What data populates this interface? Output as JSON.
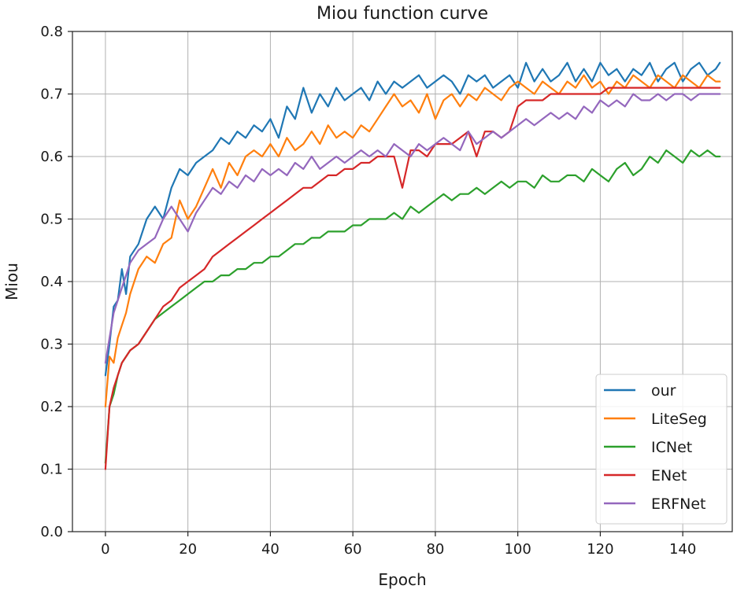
{
  "chart_data": {
    "type": "line",
    "title": "Miou function curve",
    "xlabel": "Epoch",
    "ylabel": "Miou",
    "xlim": [
      -8,
      152
    ],
    "ylim": [
      0.0,
      0.8
    ],
    "xticks": [
      0,
      20,
      40,
      60,
      80,
      100,
      120,
      140
    ],
    "yticks": [
      0.0,
      0.1,
      0.2,
      0.3,
      0.4,
      0.5,
      0.6,
      0.7,
      0.8
    ],
    "xtick_labels": [
      "0",
      "20",
      "40",
      "60",
      "80",
      "100",
      "120",
      "140"
    ],
    "ytick_labels": [
      "0.0",
      "0.1",
      "0.2",
      "0.3",
      "0.4",
      "0.5",
      "0.6",
      "0.7",
      "0.8"
    ],
    "grid": true,
    "legend_position": "bottom-right",
    "x": [
      0,
      1,
      2,
      3,
      4,
      5,
      6,
      8,
      10,
      12,
      14,
      16,
      18,
      20,
      22,
      24,
      26,
      28,
      30,
      32,
      34,
      36,
      38,
      40,
      42,
      44,
      46,
      48,
      50,
      52,
      54,
      56,
      58,
      60,
      62,
      64,
      66,
      68,
      70,
      72,
      74,
      76,
      78,
      80,
      82,
      84,
      86,
      88,
      90,
      92,
      94,
      96,
      98,
      100,
      102,
      104,
      106,
      108,
      110,
      112,
      114,
      116,
      118,
      120,
      122,
      124,
      126,
      128,
      130,
      132,
      134,
      136,
      138,
      140,
      142,
      144,
      146,
      148,
      149
    ],
    "series": [
      {
        "name": "our",
        "color": "#1f77b4",
        "values": [
          0.25,
          0.3,
          0.36,
          0.37,
          0.42,
          0.38,
          0.44,
          0.46,
          0.5,
          0.52,
          0.5,
          0.55,
          0.58,
          0.57,
          0.59,
          0.6,
          0.61,
          0.63,
          0.62,
          0.64,
          0.63,
          0.65,
          0.64,
          0.66,
          0.63,
          0.68,
          0.66,
          0.71,
          0.67,
          0.7,
          0.68,
          0.71,
          0.69,
          0.7,
          0.71,
          0.69,
          0.72,
          0.7,
          0.72,
          0.71,
          0.72,
          0.73,
          0.71,
          0.72,
          0.73,
          0.72,
          0.7,
          0.73,
          0.72,
          0.73,
          0.71,
          0.72,
          0.73,
          0.71,
          0.75,
          0.72,
          0.74,
          0.72,
          0.73,
          0.75,
          0.72,
          0.74,
          0.72,
          0.75,
          0.73,
          0.74,
          0.72,
          0.74,
          0.73,
          0.75,
          0.72,
          0.74,
          0.75,
          0.72,
          0.74,
          0.75,
          0.73,
          0.74,
          0.75
        ]
      },
      {
        "name": "LiteSeg",
        "color": "#ff7f0e",
        "values": [
          0.2,
          0.28,
          0.27,
          0.31,
          0.33,
          0.35,
          0.38,
          0.42,
          0.44,
          0.43,
          0.46,
          0.47,
          0.53,
          0.5,
          0.52,
          0.55,
          0.58,
          0.55,
          0.59,
          0.57,
          0.6,
          0.61,
          0.6,
          0.62,
          0.6,
          0.63,
          0.61,
          0.62,
          0.64,
          0.62,
          0.65,
          0.63,
          0.64,
          0.63,
          0.65,
          0.64,
          0.66,
          0.68,
          0.7,
          0.68,
          0.69,
          0.67,
          0.7,
          0.66,
          0.69,
          0.7,
          0.68,
          0.7,
          0.69,
          0.71,
          0.7,
          0.69,
          0.71,
          0.72,
          0.71,
          0.7,
          0.72,
          0.71,
          0.7,
          0.72,
          0.71,
          0.73,
          0.71,
          0.72,
          0.7,
          0.72,
          0.71,
          0.73,
          0.72,
          0.71,
          0.73,
          0.72,
          0.71,
          0.73,
          0.72,
          0.71,
          0.73,
          0.72,
          0.72
        ]
      },
      {
        "name": "ICNet",
        "color": "#2ca02c",
        "values": [
          0.11,
          0.2,
          0.22,
          0.25,
          0.27,
          0.28,
          0.29,
          0.3,
          0.32,
          0.34,
          0.35,
          0.36,
          0.37,
          0.38,
          0.39,
          0.4,
          0.4,
          0.41,
          0.41,
          0.42,
          0.42,
          0.43,
          0.43,
          0.44,
          0.44,
          0.45,
          0.46,
          0.46,
          0.47,
          0.47,
          0.48,
          0.48,
          0.48,
          0.49,
          0.49,
          0.5,
          0.5,
          0.5,
          0.51,
          0.5,
          0.52,
          0.51,
          0.52,
          0.53,
          0.54,
          0.53,
          0.54,
          0.54,
          0.55,
          0.54,
          0.55,
          0.56,
          0.55,
          0.56,
          0.56,
          0.55,
          0.57,
          0.56,
          0.56,
          0.57,
          0.57,
          0.56,
          0.58,
          0.57,
          0.56,
          0.58,
          0.59,
          0.57,
          0.58,
          0.6,
          0.59,
          0.61,
          0.6,
          0.59,
          0.61,
          0.6,
          0.61,
          0.6,
          0.6
        ]
      },
      {
        "name": "ENet",
        "color": "#d62728",
        "values": [
          0.1,
          0.2,
          0.23,
          0.25,
          0.27,
          0.28,
          0.29,
          0.3,
          0.32,
          0.34,
          0.36,
          0.37,
          0.39,
          0.4,
          0.41,
          0.42,
          0.44,
          0.45,
          0.46,
          0.47,
          0.48,
          0.49,
          0.5,
          0.51,
          0.52,
          0.53,
          0.54,
          0.55,
          0.55,
          0.56,
          0.57,
          0.57,
          0.58,
          0.58,
          0.59,
          0.59,
          0.6,
          0.6,
          0.6,
          0.55,
          0.61,
          0.61,
          0.6,
          0.62,
          0.62,
          0.62,
          0.63,
          0.64,
          0.6,
          0.64,
          0.64,
          0.63,
          0.64,
          0.68,
          0.69,
          0.69,
          0.69,
          0.7,
          0.7,
          0.7,
          0.7,
          0.7,
          0.7,
          0.7,
          0.71,
          0.71,
          0.71,
          0.71,
          0.71,
          0.71,
          0.71,
          0.71,
          0.71,
          0.71,
          0.71,
          0.71,
          0.71,
          0.71,
          0.71
        ]
      },
      {
        "name": "ERFNet",
        "color": "#9467bd",
        "values": [
          0.27,
          0.31,
          0.35,
          0.37,
          0.39,
          0.41,
          0.43,
          0.45,
          0.46,
          0.47,
          0.5,
          0.52,
          0.5,
          0.48,
          0.51,
          0.53,
          0.55,
          0.54,
          0.56,
          0.55,
          0.57,
          0.56,
          0.58,
          0.57,
          0.58,
          0.57,
          0.59,
          0.58,
          0.6,
          0.58,
          0.59,
          0.6,
          0.59,
          0.6,
          0.61,
          0.6,
          0.61,
          0.6,
          0.62,
          0.61,
          0.6,
          0.62,
          0.61,
          0.62,
          0.63,
          0.62,
          0.61,
          0.64,
          0.62,
          0.63,
          0.64,
          0.63,
          0.64,
          0.65,
          0.66,
          0.65,
          0.66,
          0.67,
          0.66,
          0.67,
          0.66,
          0.68,
          0.67,
          0.69,
          0.68,
          0.69,
          0.68,
          0.7,
          0.69,
          0.69,
          0.7,
          0.69,
          0.7,
          0.7,
          0.69,
          0.7,
          0.7,
          0.7,
          0.7
        ]
      }
    ]
  }
}
